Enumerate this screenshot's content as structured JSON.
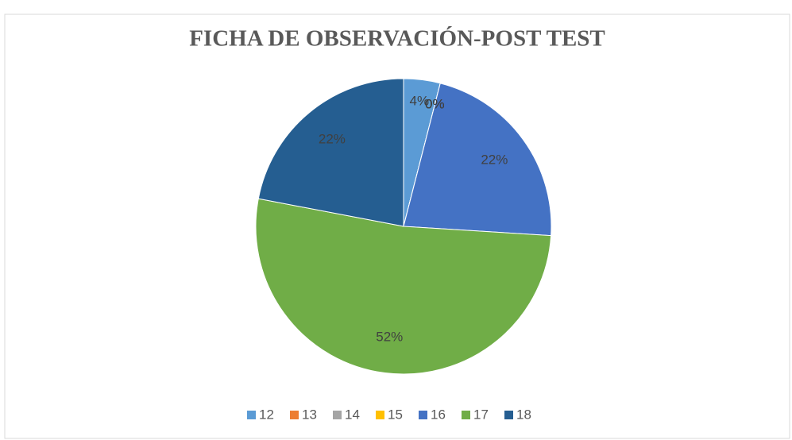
{
  "chart_data": {
    "type": "pie",
    "title": "FICHA DE OBSERVACIÓN-POST TEST",
    "categories": [
      "12",
      "13",
      "14",
      "15",
      "16",
      "17",
      "18"
    ],
    "values": [
      4,
      0,
      0,
      0,
      22,
      52,
      22
    ],
    "value_labels": [
      "4%",
      "0%",
      "0%",
      "0%",
      "22%",
      "52%",
      "22%"
    ],
    "colors": [
      "#5b9bd5",
      "#ed7d31",
      "#a5a5a5",
      "#ffc000",
      "#4472c4",
      "#70ad47",
      "#255e91"
    ],
    "legend": "bottom"
  }
}
